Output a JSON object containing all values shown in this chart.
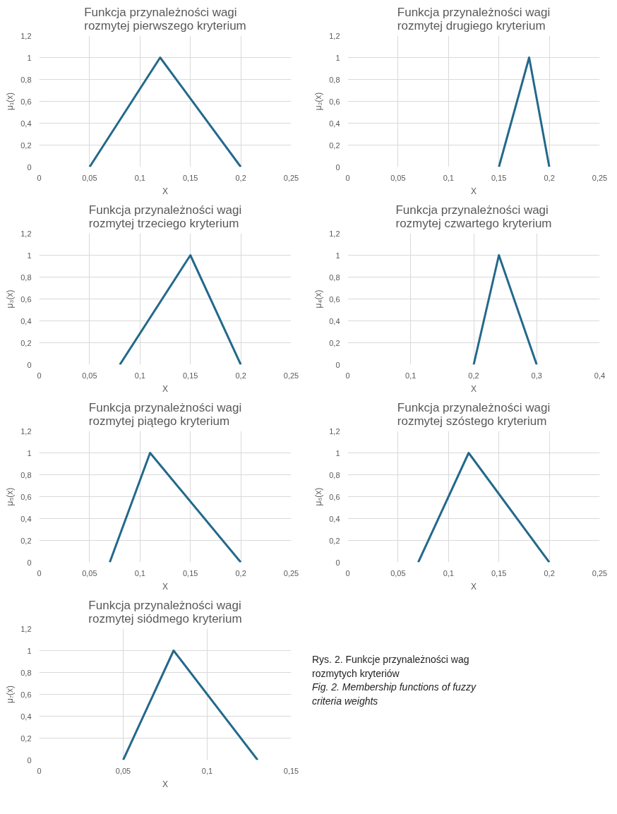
{
  "chart_data": [
    {
      "type": "line",
      "title": "Funkcja przynależności wagi\nrozmytej pierwszego kryterium",
      "xlabel": "X",
      "ylabel": "μ₁(x)",
      "x": [
        0.05,
        0.12,
        0.2
      ],
      "series": [
        {
          "color": "#23698b",
          "values": [
            0,
            1,
            0
          ]
        }
      ],
      "xlim": [
        0,
        0.25
      ],
      "xticks": [
        0,
        {
          "value": 0.05,
          "label": "0,05"
        },
        {
          "value": 0.1,
          "label": "0,1"
        },
        {
          "value": 0.15,
          "label": "0,15"
        },
        {
          "value": 0.2,
          "label": "0,2"
        },
        {
          "value": 0.25,
          "label": "0,25"
        }
      ],
      "ylim": [
        0,
        1.2
      ],
      "yticks": [
        0,
        {
          "value": 0.2,
          "label": "0,2"
        },
        {
          "value": 0.4,
          "label": "0,4"
        },
        {
          "value": 0.6,
          "label": "0,6"
        },
        {
          "value": 0.8,
          "label": "0,8"
        },
        1,
        {
          "value": 1.2,
          "label": "1,2"
        }
      ],
      "grid": true,
      "marker": "none",
      "line_style": "solid"
    },
    {
      "type": "line",
      "title": "Funkcja przynależności wagi\nrozmytej drugiego kryterium",
      "xlabel": "X",
      "ylabel": "μ₂(x)",
      "x": [
        0.15,
        0.18,
        0.2
      ],
      "series": [
        {
          "color": "#23698b",
          "values": [
            0,
            1,
            0
          ]
        }
      ],
      "xlim": [
        0,
        0.25
      ],
      "xticks": [
        0,
        {
          "value": 0.05,
          "label": "0,05"
        },
        {
          "value": 0.1,
          "label": "0,1"
        },
        {
          "value": 0.15,
          "label": "0,15"
        },
        {
          "value": 0.2,
          "label": "0,2"
        },
        {
          "value": 0.25,
          "label": "0,25"
        }
      ],
      "ylim": [
        0,
        1.2
      ],
      "yticks": [
        0,
        {
          "value": 0.2,
          "label": "0,2"
        },
        {
          "value": 0.4,
          "label": "0,4"
        },
        {
          "value": 0.6,
          "label": "0,6"
        },
        {
          "value": 0.8,
          "label": "0,8"
        },
        1,
        {
          "value": 1.2,
          "label": "1,2"
        }
      ],
      "grid": true,
      "marker": "none",
      "line_style": "solid"
    },
    {
      "type": "line",
      "title": "Funkcja przynależności wagi\nrozmytej trzeciego kryterium",
      "xlabel": "X",
      "ylabel": "μ₃(x)",
      "x": [
        0.08,
        0.15,
        0.2
      ],
      "series": [
        {
          "color": "#23698b",
          "values": [
            0,
            1,
            0
          ]
        }
      ],
      "xlim": [
        0,
        0.25
      ],
      "xticks": [
        0,
        {
          "value": 0.05,
          "label": "0,05"
        },
        {
          "value": 0.1,
          "label": "0,1"
        },
        {
          "value": 0.15,
          "label": "0,15"
        },
        {
          "value": 0.2,
          "label": "0,2"
        },
        {
          "value": 0.25,
          "label": "0,25"
        }
      ],
      "ylim": [
        0,
        1.2
      ],
      "yticks": [
        0,
        {
          "value": 0.2,
          "label": "0,2"
        },
        {
          "value": 0.4,
          "label": "0,4"
        },
        {
          "value": 0.6,
          "label": "0,6"
        },
        {
          "value": 0.8,
          "label": "0,8"
        },
        1,
        {
          "value": 1.2,
          "label": "1,2"
        }
      ],
      "grid": true,
      "marker": "none",
      "line_style": "solid"
    },
    {
      "type": "line",
      "title": "Funkcja przynależności wagi\nrozmytej czwartego kryterium",
      "xlabel": "X",
      "ylabel": "μ₄(x)",
      "x": [
        0.2,
        0.24,
        0.3
      ],
      "series": [
        {
          "color": "#23698b",
          "values": [
            0,
            1,
            0
          ]
        }
      ],
      "xlim": [
        0,
        0.4
      ],
      "xticks": [
        0,
        {
          "value": 0.1,
          "label": "0,1"
        },
        {
          "value": 0.2,
          "label": "0,2"
        },
        {
          "value": 0.3,
          "label": "0,3"
        },
        {
          "value": 0.4,
          "label": "0,4"
        }
      ],
      "ylim": [
        0,
        1.2
      ],
      "yticks": [
        0,
        {
          "value": 0.2,
          "label": "0,2"
        },
        {
          "value": 0.4,
          "label": "0,4"
        },
        {
          "value": 0.6,
          "label": "0,6"
        },
        {
          "value": 0.8,
          "label": "0,8"
        },
        1,
        {
          "value": 1.2,
          "label": "1,2"
        }
      ],
      "grid": true,
      "marker": "none",
      "line_style": "solid"
    },
    {
      "type": "line",
      "title": "Funkcja przynależności wagi\nrozmytej piątego kryterium",
      "xlabel": "X",
      "ylabel": "μ₅(x)",
      "x": [
        0.07,
        0.11,
        0.2
      ],
      "series": [
        {
          "color": "#23698b",
          "values": [
            0,
            1,
            0
          ]
        }
      ],
      "xlim": [
        0,
        0.25
      ],
      "xticks": [
        0,
        {
          "value": 0.05,
          "label": "0,05"
        },
        {
          "value": 0.1,
          "label": "0,1"
        },
        {
          "value": 0.15,
          "label": "0,15"
        },
        {
          "value": 0.2,
          "label": "0,2"
        },
        {
          "value": 0.25,
          "label": "0,25"
        }
      ],
      "ylim": [
        0,
        1.2
      ],
      "yticks": [
        0,
        {
          "value": 0.2,
          "label": "0,2"
        },
        {
          "value": 0.4,
          "label": "0,4"
        },
        {
          "value": 0.6,
          "label": "0,6"
        },
        {
          "value": 0.8,
          "label": "0,8"
        },
        1,
        {
          "value": 1.2,
          "label": "1,2"
        }
      ],
      "grid": true,
      "marker": "none",
      "line_style": "solid"
    },
    {
      "type": "line",
      "title": "Funkcja przynależności wagi\nrozmytej szóstego kryterium",
      "xlabel": "X",
      "ylabel": "μ₆(x)",
      "x": [
        0.07,
        0.12,
        0.2
      ],
      "series": [
        {
          "color": "#23698b",
          "values": [
            0,
            1,
            0
          ]
        }
      ],
      "xlim": [
        0,
        0.25
      ],
      "xticks": [
        0,
        {
          "value": 0.05,
          "label": "0,05"
        },
        {
          "value": 0.1,
          "label": "0,1"
        },
        {
          "value": 0.15,
          "label": "0,15"
        },
        {
          "value": 0.2,
          "label": "0,2"
        },
        {
          "value": 0.25,
          "label": "0,25"
        }
      ],
      "ylim": [
        0,
        1.2
      ],
      "yticks": [
        0,
        {
          "value": 0.2,
          "label": "0,2"
        },
        {
          "value": 0.4,
          "label": "0,4"
        },
        {
          "value": 0.6,
          "label": "0,6"
        },
        {
          "value": 0.8,
          "label": "0,8"
        },
        1,
        {
          "value": 1.2,
          "label": "1,2"
        }
      ],
      "grid": true,
      "marker": "none",
      "line_style": "solid"
    },
    {
      "type": "line",
      "title": "Funkcja przynależności wagi\nrozmytej siódmego kryterium",
      "xlabel": "X",
      "ylabel": "μ₇(x)",
      "x": [
        0.05,
        0.08,
        0.13
      ],
      "series": [
        {
          "color": "#23698b",
          "values": [
            0,
            1,
            0
          ]
        }
      ],
      "xlim": [
        0,
        0.15
      ],
      "xticks": [
        0,
        {
          "value": 0.05,
          "label": "0,05"
        },
        {
          "value": 0.1,
          "label": "0,1"
        },
        {
          "value": 0.15,
          "label": "0,15"
        }
      ],
      "ylim": [
        0,
        1.2
      ],
      "yticks": [
        0,
        {
          "value": 0.2,
          "label": "0,2"
        },
        {
          "value": 0.4,
          "label": "0,4"
        },
        {
          "value": 0.6,
          "label": "0,6"
        },
        {
          "value": 0.8,
          "label": "0,8"
        },
        1,
        {
          "value": 1.2,
          "label": "1,2"
        }
      ],
      "grid": true,
      "marker": "none",
      "line_style": "solid",
      "annotations": [
        "Rys. 2. Funkcje przynależności wag rozmytych kryteriów",
        "Fig. 2. Membership functions of fuzzy criteria weights"
      ]
    }
  ]
}
